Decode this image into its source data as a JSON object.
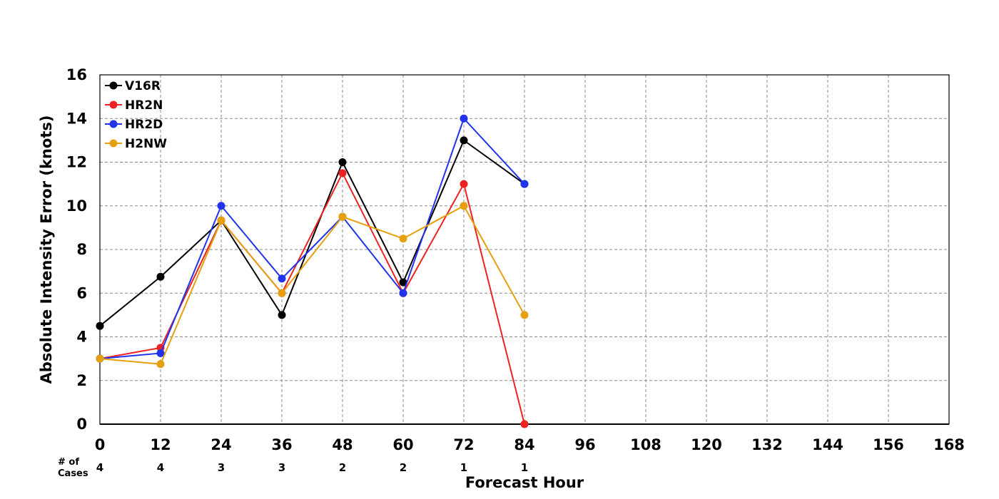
{
  "chart_data": {
    "type": "line",
    "title": "",
    "xlabel": "Forecast Hour",
    "ylabel": "Absolute Intensity Error (knots)",
    "xlim": [
      0,
      168
    ],
    "ylim": [
      0,
      16
    ],
    "x_ticks": [
      "0",
      "12",
      "24",
      "36",
      "48",
      "60",
      "72",
      "84",
      "96",
      "108",
      "120",
      "132",
      "144",
      "156",
      "168"
    ],
    "y_ticks": [
      "0",
      "2",
      "4",
      "6",
      "8",
      "10",
      "12",
      "14",
      "16"
    ],
    "grid": true,
    "legend_position": "top-left",
    "x": [
      0,
      12,
      24,
      36,
      48,
      60,
      72,
      84
    ],
    "series": [
      {
        "name": "V16R",
        "color": "#000000",
        "values": [
          4.5,
          6.75,
          9.33,
          5.0,
          12.0,
          6.5,
          13.0,
          11.0
        ]
      },
      {
        "name": "HR2N",
        "color": "#ee2222",
        "values": [
          3.0,
          3.5,
          9.33,
          6.0,
          11.5,
          6.0,
          11.0,
          0.0
        ]
      },
      {
        "name": "HR2D",
        "color": "#2233ee",
        "values": [
          3.0,
          3.25,
          10.0,
          6.67,
          9.5,
          6.0,
          14.0,
          11.0
        ]
      },
      {
        "name": "H2NW",
        "color": "#e5a010",
        "values": [
          3.0,
          2.75,
          9.33,
          6.0,
          9.5,
          8.5,
          10.0,
          5.0
        ]
      }
    ],
    "cases": {
      "label_line1": "# of",
      "label_line2": "Cases",
      "x": [
        0,
        12,
        24,
        36,
        48,
        60,
        72,
        84
      ],
      "values": [
        "4",
        "4",
        "3",
        "3",
        "2",
        "2",
        "1",
        "1"
      ]
    }
  }
}
